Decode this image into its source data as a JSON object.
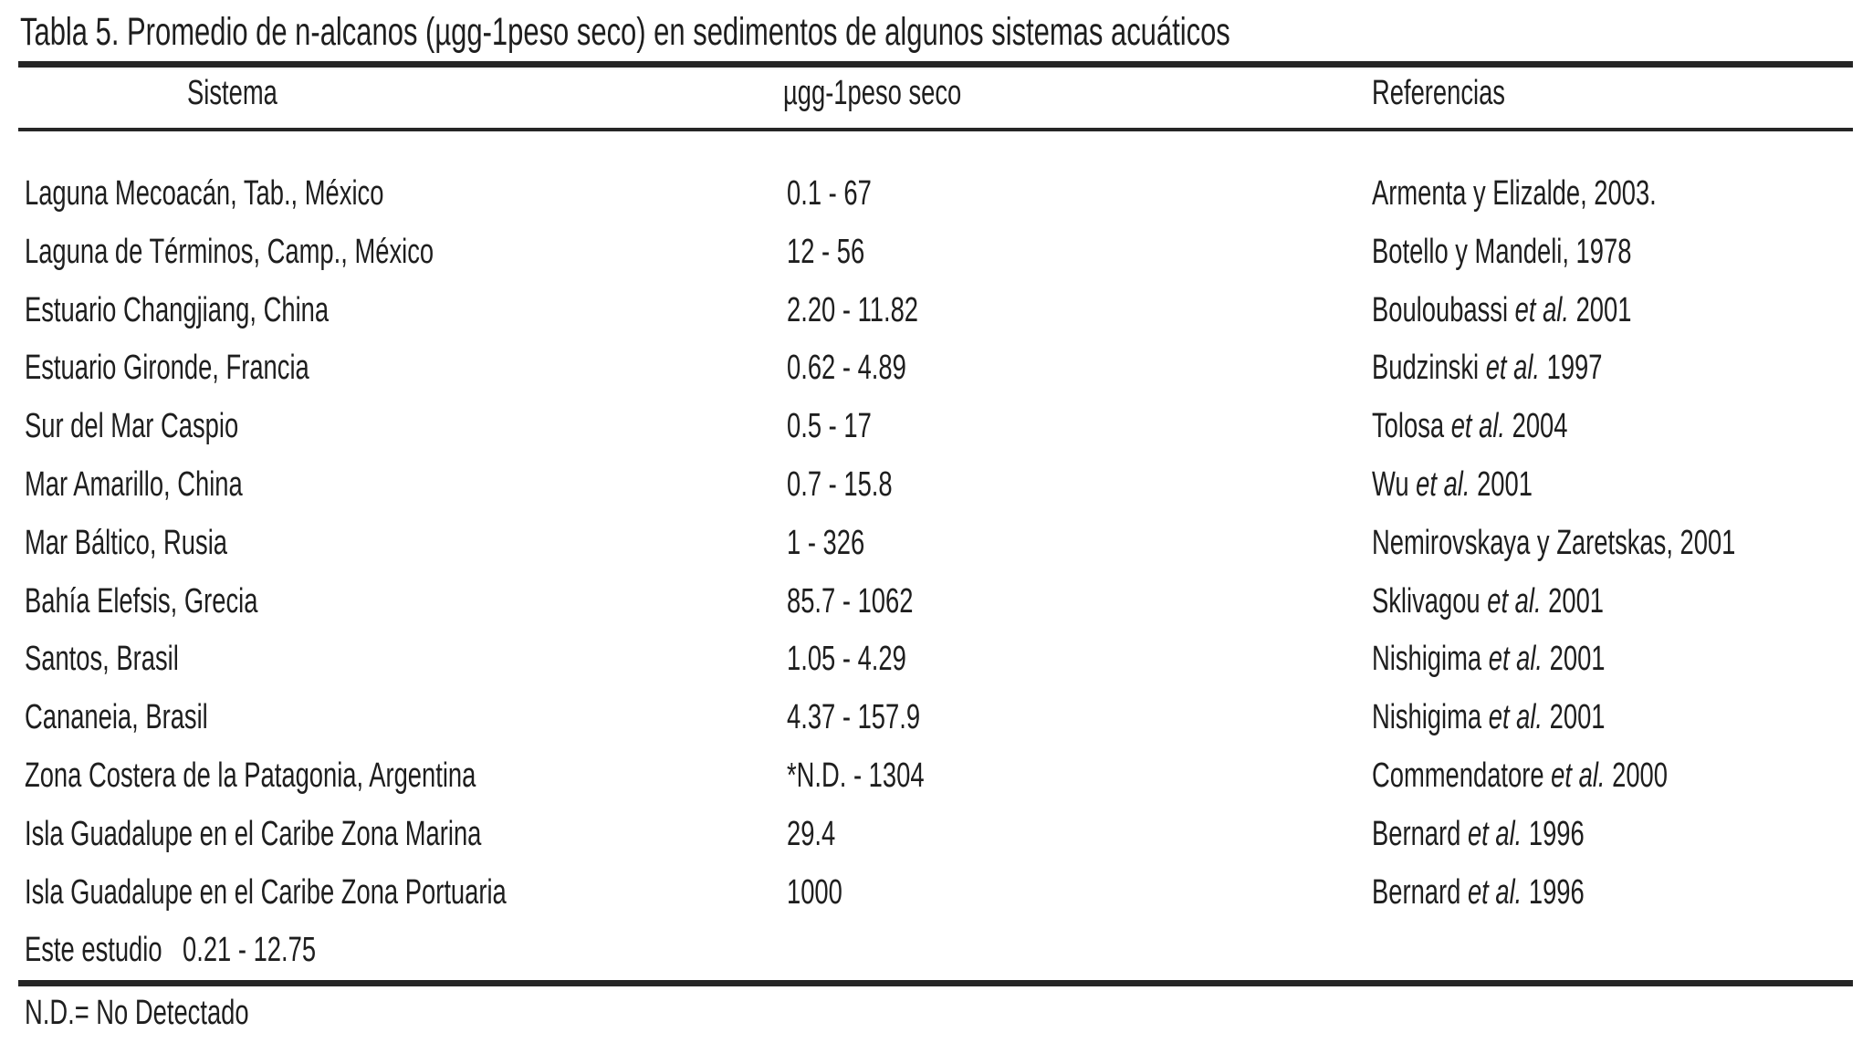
{
  "document": {
    "title": "Tabla 5. Promedio de n-alcanos (µgg-1peso seco) en sedimentos de algunos sistemas acuáticos",
    "footnote": "N.D.= No Detectado"
  },
  "colors": {
    "background": "#ffffff",
    "text": "#1e1e1e",
    "rule": "#262626"
  },
  "table": {
    "columns": {
      "system": "Sistema",
      "value": "µgg-1peso seco",
      "reference": "Referencias"
    },
    "rows": [
      {
        "system": "Laguna Mecoacán, Tab., México",
        "value": "0.1 - 67",
        "ref_pre": "Armenta y Elizalde, 2003.",
        "ref_italic": "",
        "ref_post": ""
      },
      {
        "system": "Laguna de Términos, Camp., México",
        "value": "12 - 56",
        "ref_pre": "Botello y Mandeli, 1978",
        "ref_italic": "",
        "ref_post": ""
      },
      {
        "system": "Estuario Changjiang, China",
        "value": "2.20 - 11.82",
        "ref_pre": "Bouloubassi ",
        "ref_italic": "et al.",
        "ref_post": " 2001"
      },
      {
        "system": "Estuario Gironde, Francia",
        "value": "0.62 - 4.89",
        "ref_pre": "Budzinski ",
        "ref_italic": "et al.",
        "ref_post": " 1997"
      },
      {
        "system": "Sur del Mar Caspio",
        "value": "0.5 - 17",
        "ref_pre": "Tolosa ",
        "ref_italic": "et al.",
        "ref_post": " 2004"
      },
      {
        "system": "Mar Amarillo, China",
        "value": "0.7 - 15.8",
        "ref_pre": "Wu ",
        "ref_italic": "et al.",
        "ref_post": " 2001"
      },
      {
        "system": "Mar Báltico, Rusia",
        "value": "1 - 326",
        "ref_pre": "Nemirovskaya y Zaretskas, 2001",
        "ref_italic": "",
        "ref_post": ""
      },
      {
        "system": "Bahía Elefsis, Grecia",
        "value": "85.7 - 1062",
        "ref_pre": "Sklivagou ",
        "ref_italic": "et al.",
        "ref_post": " 2001"
      },
      {
        "system": "Santos, Brasil",
        "value": "1.05 - 4.29",
        "ref_pre": "Nishigima ",
        "ref_italic": "et al.",
        "ref_post": " 2001"
      },
      {
        "system": "Cananeia, Brasil",
        "value": "4.37 - 157.9",
        "ref_pre": "Nishigima ",
        "ref_italic": "et al.",
        "ref_post": " 2001"
      },
      {
        "system": "Zona Costera de la Patagonia, Argentina",
        "value": "*N.D. - 1304",
        "ref_pre": "Commendatore ",
        "ref_italic": "et al.",
        "ref_post": " 2000"
      },
      {
        "system": "Isla Guadalupe en el Caribe Zona Marina",
        "value": "29.4",
        "ref_pre": "Bernard ",
        "ref_italic": "et al.",
        "ref_post": " 1996"
      },
      {
        "system": "Isla Guadalupe en el Caribe Zona Portuaria",
        "value": "1000",
        "ref_pre": "Bernard ",
        "ref_italic": "et al.",
        "ref_post": " 1996"
      },
      {
        "system": "Este estudio",
        "value": "0.21 - 12.75",
        "ref_pre": "",
        "ref_italic": "",
        "ref_post": ""
      }
    ]
  }
}
